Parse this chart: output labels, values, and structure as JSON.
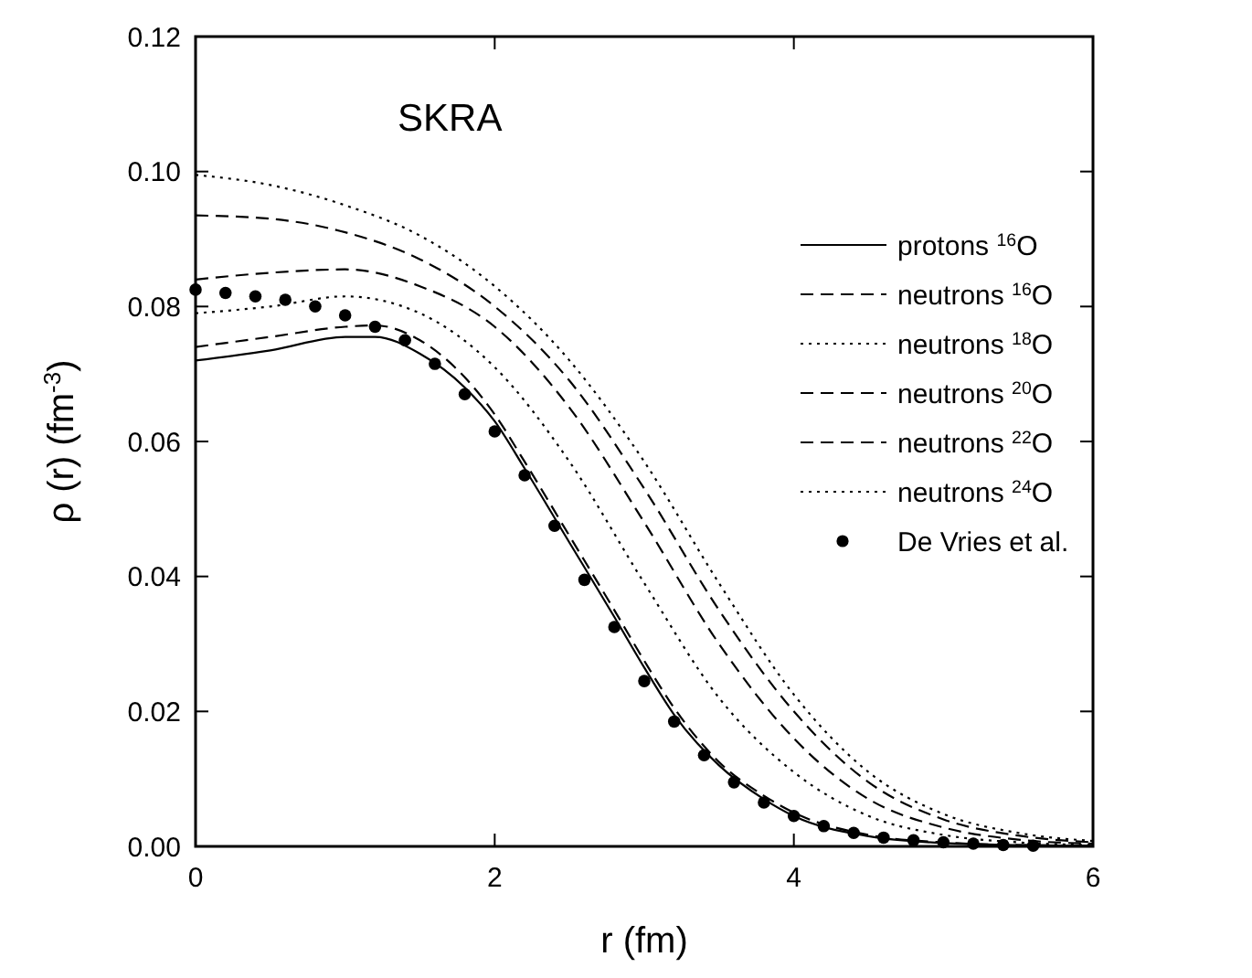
{
  "chart_data": {
    "type": "line",
    "title": "SKRA",
    "xlabel": "r (fm)",
    "ylabel": "ρ (r) (fm$^{-3}$)",
    "xlim": [
      0,
      6
    ],
    "xticks": [
      0,
      2,
      4,
      6
    ],
    "ylim": [
      0,
      0.12
    ],
    "yticks": [
      {
        "value": 0,
        "label": "0.00"
      },
      {
        "value": 0.02,
        "label": "0.02"
      },
      {
        "value": 0.04,
        "label": "0.04"
      },
      {
        "value": 0.06,
        "label": "0.06"
      },
      {
        "value": 0.08,
        "label": "0.08"
      },
      {
        "value": 0.1,
        "label": "0.10"
      },
      {
        "value": 0.12,
        "label": "0.12"
      }
    ],
    "grid": false,
    "legend": "right",
    "marker": "none",
    "series": [
      {
        "name": "protons $^{16}$O",
        "color": "#000000",
        "line_style": "solid",
        "x": [
          0,
          0.5,
          1,
          1.2,
          1.5,
          1.8,
          2,
          2.2,
          2.5,
          2.8,
          3,
          3.2,
          3.5,
          3.8,
          4,
          4.5,
          5,
          5.5,
          6
        ],
        "values": [
          0.072,
          0.0735,
          0.0755,
          0.0755,
          0.073,
          0.068,
          0.063,
          0.056,
          0.045,
          0.034,
          0.0265,
          0.0195,
          0.012,
          0.007,
          0.0045,
          0.0015,
          0.0005,
          0.0002,
          0.0001
        ]
      },
      {
        "name": "neutrons $^{16}$O",
        "color": "#000000",
        "line_style": "dashed",
        "x": [
          0,
          0.5,
          1,
          1.2,
          1.5,
          1.8,
          2,
          2.2,
          2.5,
          2.8,
          3,
          3.2,
          3.5,
          3.8,
          4,
          4.5,
          5,
          5.5,
          6
        ],
        "values": [
          0.074,
          0.0755,
          0.077,
          0.0772,
          0.075,
          0.0695,
          0.064,
          0.057,
          0.046,
          0.035,
          0.0275,
          0.0205,
          0.0125,
          0.0075,
          0.005,
          0.0017,
          0.0006,
          0.0002,
          0.0001
        ]
      },
      {
        "name": "neutrons $^{18}$O",
        "color": "#000000",
        "line_style": "dotted",
        "x": [
          0,
          0.5,
          1,
          1.5,
          2,
          2.5,
          3,
          3.5,
          4,
          4.5,
          5,
          5.5,
          6
        ],
        "values": [
          0.079,
          0.08,
          0.0815,
          0.079,
          0.071,
          0.057,
          0.039,
          0.022,
          0.011,
          0.0045,
          0.0017,
          0.0006,
          0.0002
        ]
      },
      {
        "name": "neutrons $^{20}$O",
        "color": "#000000",
        "line_style": "dashed",
        "x": [
          0,
          0.5,
          1,
          1.5,
          2,
          2.5,
          3,
          3.5,
          4,
          4.5,
          5,
          5.5,
          6
        ],
        "values": [
          0.084,
          0.085,
          0.0855,
          0.083,
          0.077,
          0.065,
          0.048,
          0.03,
          0.016,
          0.007,
          0.0028,
          0.001,
          0.0004
        ]
      },
      {
        "name": "neutrons $^{22}$O",
        "color": "#000000",
        "line_style": "dashed",
        "x": [
          0,
          0.5,
          1,
          1.5,
          2,
          2.5,
          3,
          3.5,
          4,
          4.5,
          5,
          5.5,
          6
        ],
        "values": [
          0.0935,
          0.093,
          0.091,
          0.087,
          0.08,
          0.069,
          0.053,
          0.035,
          0.02,
          0.0095,
          0.004,
          0.0016,
          0.0006
        ]
      },
      {
        "name": "neutrons $^{24}$O",
        "color": "#000000",
        "line_style": "dotted",
        "x": [
          0,
          0.5,
          1,
          1.5,
          2,
          2.5,
          3,
          3.5,
          4,
          4.5,
          5,
          5.5,
          6
        ],
        "values": [
          0.0995,
          0.098,
          0.095,
          0.0905,
          0.083,
          0.072,
          0.057,
          0.039,
          0.0225,
          0.011,
          0.0048,
          0.002,
          0.0008
        ]
      },
      {
        "name": "De Vries et al.",
        "type": "scatter",
        "marker": "circle",
        "color": "#000000",
        "x": [
          0,
          0.2,
          0.4,
          0.6,
          0.8,
          1,
          1.2,
          1.4,
          1.6,
          1.8,
          2,
          2.2,
          2.4,
          2.6,
          2.8,
          3,
          3.2,
          3.4,
          3.6,
          3.8,
          4,
          4.2,
          4.4,
          4.6,
          4.8,
          5,
          5.2,
          5.4,
          5.6
        ],
        "values": [
          0.0825,
          0.082,
          0.0815,
          0.081,
          0.08,
          0.0787,
          0.077,
          0.075,
          0.0715,
          0.067,
          0.0615,
          0.055,
          0.0475,
          0.0395,
          0.0325,
          0.0245,
          0.0185,
          0.0135,
          0.0095,
          0.0065,
          0.0045,
          0.003,
          0.002,
          0.0013,
          0.0009,
          0.0006,
          0.0004,
          0.0002,
          0.0001
        ]
      }
    ]
  }
}
